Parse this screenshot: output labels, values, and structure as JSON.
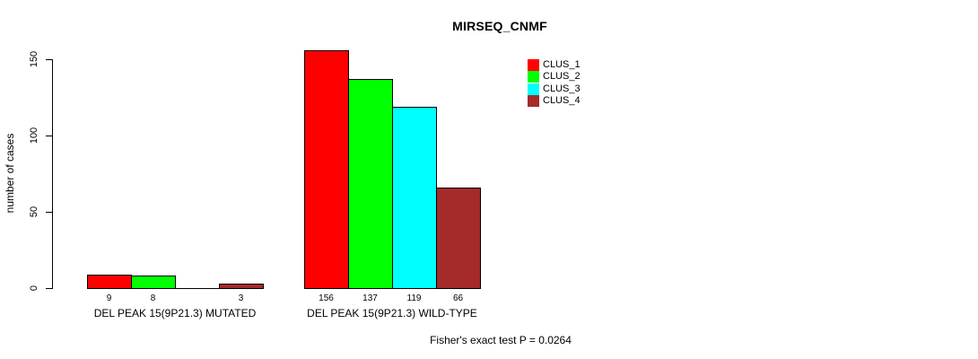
{
  "chart_data": {
    "type": "bar",
    "title": "MIRSEQ_CNMF",
    "ylabel": "number of cases",
    "xlabel": "",
    "categories": [
      "DEL PEAK 15(9P21.3) MUTATED",
      "DEL PEAK 15(9P21.3) WILD-TYPE"
    ],
    "series": [
      {
        "name": "CLUS_1",
        "color": "#FF0000",
        "values": [
          9,
          156
        ]
      },
      {
        "name": "CLUS_2",
        "color": "#00FF00",
        "values": [
          8,
          137
        ]
      },
      {
        "name": "CLUS_3",
        "color": "#00FFFF",
        "values": [
          0,
          119
        ]
      },
      {
        "name": "CLUS_4",
        "color": "#A52A2A",
        "values": [
          3,
          66
        ]
      }
    ],
    "yticks": [
      0,
      50,
      100,
      150
    ],
    "ylim": [
      0,
      160
    ],
    "grid": false,
    "legend_position": "top-right",
    "bar_value_labels_shown": true,
    "zero_value_labels_hidden": true,
    "annotation": "Fisher's exact test P = 0.0264"
  },
  "colors": {
    "background": "#FFFFFF",
    "axis": "#000000",
    "text": "#000000"
  }
}
